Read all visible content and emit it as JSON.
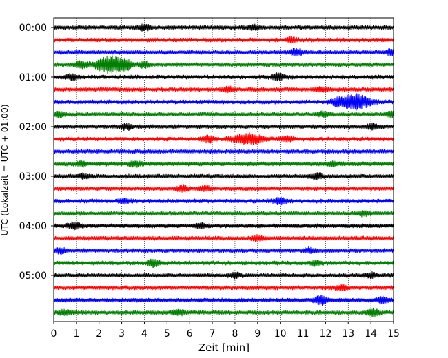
{
  "chart_data": {
    "type": "line",
    "title": "",
    "xlabel": "Zeit  [min]",
    "ylabel": "UTC (Lokalzeit = UTC + 01:00)",
    "xlim": [
      0,
      15
    ],
    "x_ticks": [
      0,
      1,
      2,
      3,
      4,
      5,
      6,
      7,
      8,
      9,
      10,
      11,
      12,
      13,
      14,
      15
    ],
    "x_gridlines": "dotted vertical at every minute",
    "y_ticks": [
      "00:00",
      "01:00",
      "02:00",
      "03:00",
      "04:00",
      "05:00"
    ],
    "row_interval_minutes": 15,
    "row_colors": [
      "#000000",
      "#ff0000",
      "#0000ff",
      "#008000"
    ],
    "rows": [
      {
        "start": "00:00",
        "color": "#000000",
        "events": [
          {
            "t": 4.0,
            "amp": 0.35
          },
          {
            "t": 8.8,
            "amp": 0.3
          }
        ]
      },
      {
        "start": "00:15",
        "color": "#ff0000",
        "events": [
          {
            "t": 10.5,
            "amp": 0.25
          }
        ]
      },
      {
        "start": "00:30",
        "color": "#0000ff",
        "events": [
          {
            "t": 10.7,
            "amp": 0.45
          },
          {
            "t": 14.9,
            "amp": 0.4
          }
        ]
      },
      {
        "start": "00:45",
        "color": "#008000",
        "events": [
          {
            "t": 2.5,
            "amp": 1.2
          },
          {
            "t": 1.2,
            "amp": 0.5
          },
          {
            "t": 3.2,
            "amp": 0.45
          },
          {
            "t": 4.0,
            "amp": 0.35
          }
        ]
      },
      {
        "start": "01:00",
        "color": "#000000",
        "events": [
          {
            "t": 0.8,
            "amp": 0.35
          },
          {
            "t": 9.9,
            "amp": 0.45
          }
        ]
      },
      {
        "start": "01:15",
        "color": "#ff0000",
        "events": [
          {
            "t": 7.7,
            "amp": 0.3
          },
          {
            "t": 11.8,
            "amp": 0.3
          }
        ]
      },
      {
        "start": "01:30",
        "color": "#0000ff",
        "events": [
          {
            "t": 13.3,
            "amp": 1.1
          },
          {
            "t": 12.5,
            "amp": 0.4
          }
        ]
      },
      {
        "start": "01:45",
        "color": "#008000",
        "events": [
          {
            "t": 0.2,
            "amp": 0.4
          },
          {
            "t": 11.9,
            "amp": 0.3
          },
          {
            "t": 14.9,
            "amp": 0.35
          }
        ]
      },
      {
        "start": "02:00",
        "color": "#000000",
        "events": [
          {
            "t": 3.2,
            "amp": 0.4
          },
          {
            "t": 14.1,
            "amp": 0.35
          }
        ]
      },
      {
        "start": "02:15",
        "color": "#ff0000",
        "events": [
          {
            "t": 8.6,
            "amp": 0.75
          },
          {
            "t": 6.8,
            "amp": 0.4
          },
          {
            "t": 10.3,
            "amp": 0.3
          }
        ]
      },
      {
        "start": "02:30",
        "color": "#0000ff",
        "events": []
      },
      {
        "start": "02:45",
        "color": "#008000",
        "events": [
          {
            "t": 1.2,
            "amp": 0.3
          },
          {
            "t": 3.6,
            "amp": 0.3
          },
          {
            "t": 12.3,
            "amp": 0.3
          }
        ]
      },
      {
        "start": "03:00",
        "color": "#000000",
        "events": [
          {
            "t": 1.3,
            "amp": 0.3
          },
          {
            "t": 11.6,
            "amp": 0.4
          }
        ]
      },
      {
        "start": "03:15",
        "color": "#ff0000",
        "events": [
          {
            "t": 5.7,
            "amp": 0.35
          },
          {
            "t": 6.7,
            "amp": 0.3
          }
        ]
      },
      {
        "start": "03:30",
        "color": "#0000ff",
        "events": [
          {
            "t": 10.0,
            "amp": 0.45
          },
          {
            "t": 3.1,
            "amp": 0.3
          }
        ]
      },
      {
        "start": "03:45",
        "color": "#008000",
        "events": [
          {
            "t": 13.7,
            "amp": 0.3
          }
        ]
      },
      {
        "start": "04:00",
        "color": "#000000",
        "events": [
          {
            "t": 0.9,
            "amp": 0.45
          },
          {
            "t": 6.5,
            "amp": 0.3
          }
        ]
      },
      {
        "start": "04:15",
        "color": "#ff0000",
        "events": [
          {
            "t": 9.0,
            "amp": 0.3
          }
        ]
      },
      {
        "start": "04:30",
        "color": "#0000ff",
        "events": [
          {
            "t": 0.3,
            "amp": 0.35
          },
          {
            "t": 11.3,
            "amp": 0.3
          }
        ]
      },
      {
        "start": "04:45",
        "color": "#008000",
        "events": [
          {
            "t": 4.4,
            "amp": 0.45
          },
          {
            "t": 11.6,
            "amp": 0.3
          }
        ]
      },
      {
        "start": "05:00",
        "color": "#000000",
        "events": [
          {
            "t": 8.0,
            "amp": 0.3
          },
          {
            "t": 14.0,
            "amp": 0.3
          }
        ]
      },
      {
        "start": "05:15",
        "color": "#ff0000",
        "events": [
          {
            "t": 12.7,
            "amp": 0.3
          }
        ]
      },
      {
        "start": "05:30",
        "color": "#0000ff",
        "events": [
          {
            "t": 11.8,
            "amp": 0.65
          },
          {
            "t": 14.5,
            "amp": 0.35
          }
        ]
      },
      {
        "start": "05:45",
        "color": "#008000",
        "events": [
          {
            "t": 14.1,
            "amp": 0.5
          },
          {
            "t": 5.5,
            "amp": 0.35
          },
          {
            "t": 0.5,
            "amp": 0.3
          }
        ]
      }
    ],
    "grid": true,
    "legend": "none"
  }
}
